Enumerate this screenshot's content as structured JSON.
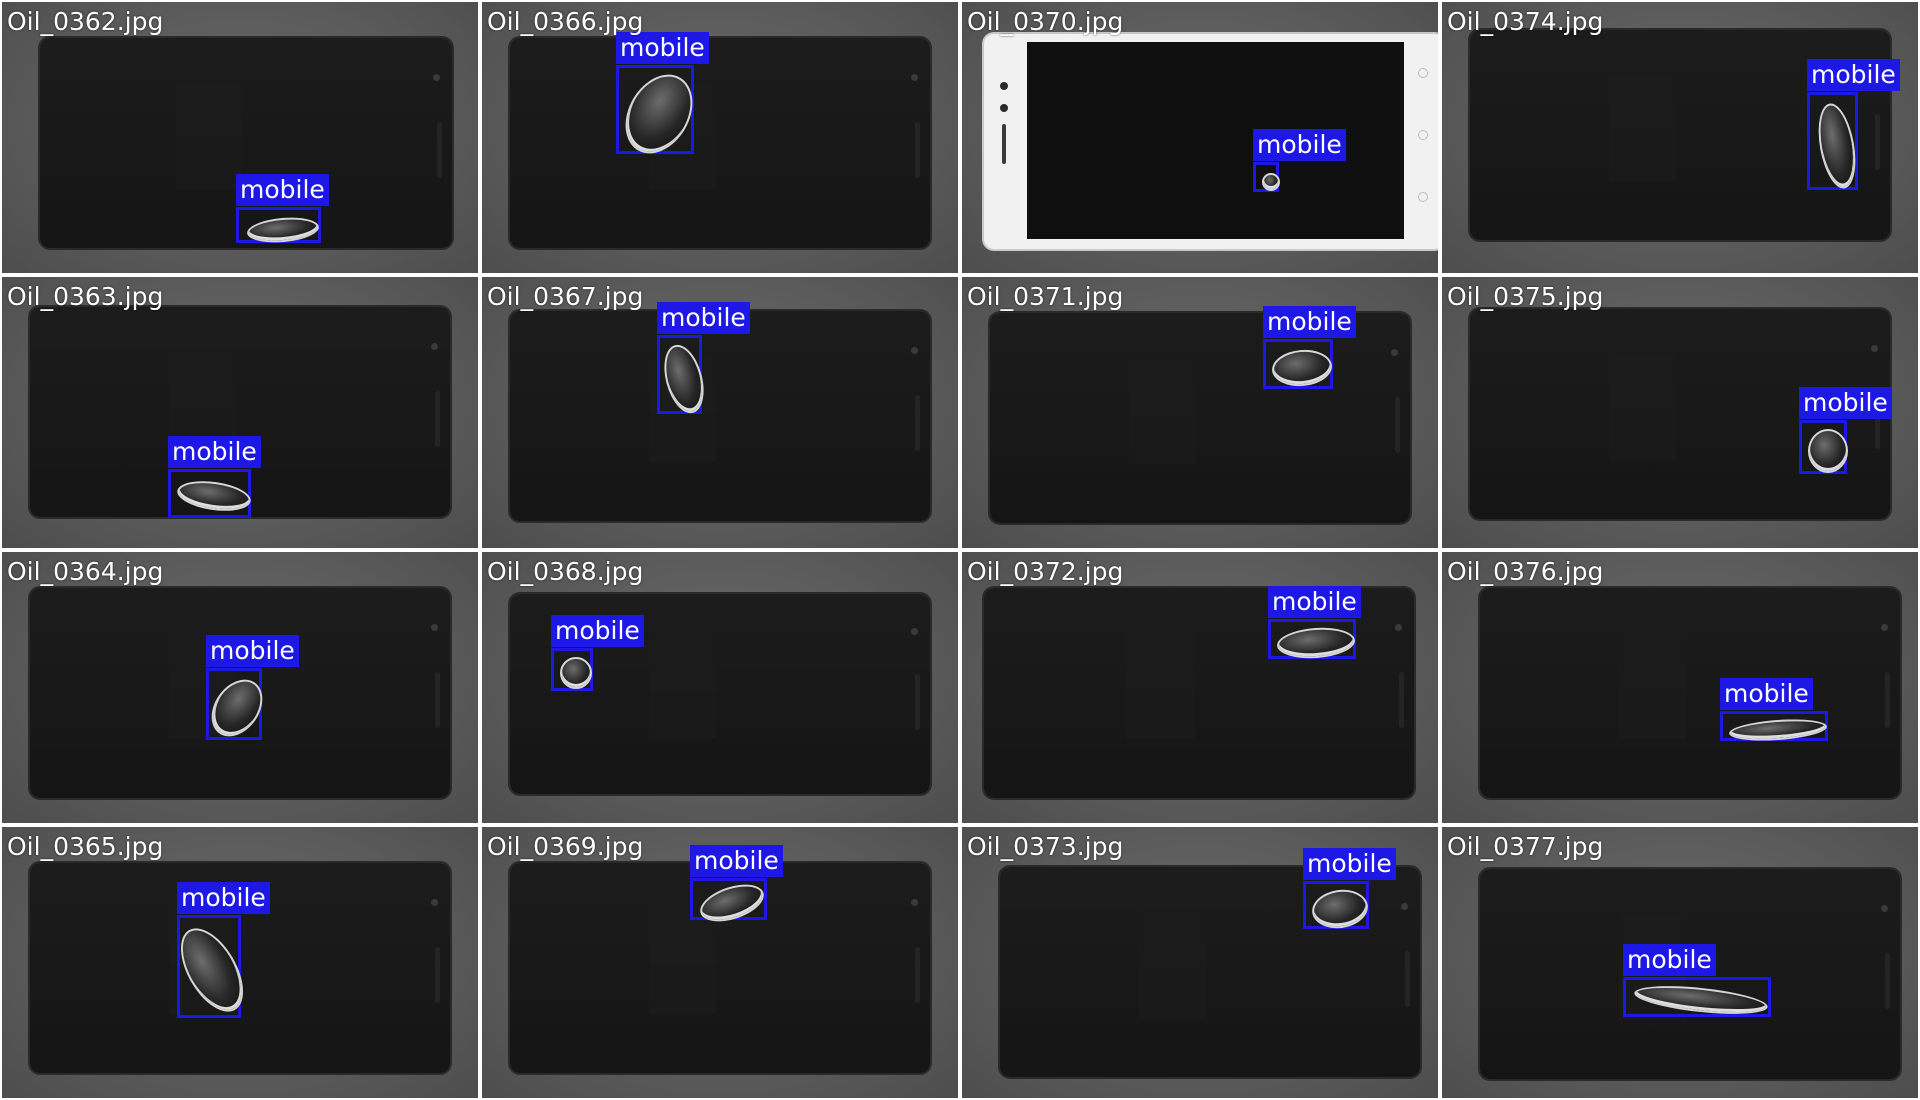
{
  "grid": {
    "columns": 4,
    "rows": 4,
    "box_color": "#1e18e6",
    "background_color": "#5e5e5e",
    "tiles": [
      {
        "filename": "Oil_0362.jpg",
        "detections": [
          {
            "label": "mobile"
          }
        ]
      },
      {
        "filename": "Oil_0366.jpg",
        "detections": [
          {
            "label": "mobile"
          }
        ]
      },
      {
        "filename": "Oil_0370.jpg",
        "phone_color": "white",
        "detections": [
          {
            "label": "mobile"
          }
        ]
      },
      {
        "filename": "Oil_0374.jpg",
        "detections": [
          {
            "label": "mobile"
          }
        ]
      },
      {
        "filename": "Oil_0363.jpg",
        "detections": [
          {
            "label": "mobile"
          }
        ]
      },
      {
        "filename": "Oil_0367.jpg",
        "detections": [
          {
            "label": "mobile"
          }
        ]
      },
      {
        "filename": "Oil_0371.jpg",
        "detections": [
          {
            "label": "mobile"
          }
        ]
      },
      {
        "filename": "Oil_0375.jpg",
        "detections": [
          {
            "label": "mobile"
          }
        ]
      },
      {
        "filename": "Oil_0364.jpg",
        "detections": [
          {
            "label": "mobile"
          }
        ]
      },
      {
        "filename": "Oil_0368.jpg",
        "detections": [
          {
            "label": "mobile"
          }
        ]
      },
      {
        "filename": "Oil_0372.jpg",
        "detections": [
          {
            "label": "mobile"
          }
        ]
      },
      {
        "filename": "Oil_0376.jpg",
        "detections": [
          {
            "label": "mobile"
          }
        ]
      },
      {
        "filename": "Oil_0365.jpg",
        "detections": [
          {
            "label": "mobile"
          }
        ]
      },
      {
        "filename": "Oil_0369.jpg",
        "detections": [
          {
            "label": "mobile"
          }
        ]
      },
      {
        "filename": "Oil_0373.jpg",
        "detections": [
          {
            "label": "mobile"
          }
        ]
      },
      {
        "filename": "Oil_0377.jpg",
        "detections": [
          {
            "label": "mobile"
          }
        ]
      }
    ]
  }
}
